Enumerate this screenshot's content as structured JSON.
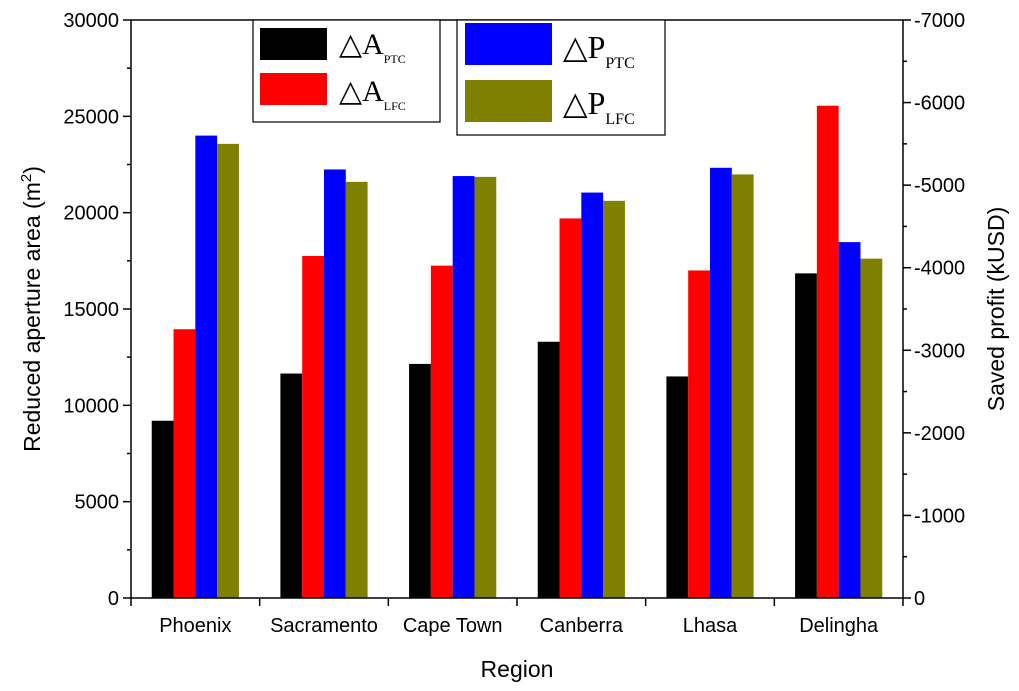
{
  "chart_data": {
    "type": "bar",
    "categories": [
      "Phoenix",
      "Sacramento",
      "Cape Town",
      "Canberra",
      "Lhasa",
      "Delingha"
    ],
    "xlabel": "Region",
    "ylabel_left": {
      "text": "Reduced aperture area (m",
      "sup": "2",
      "close": ")"
    },
    "ylabel_right": "Saved profit (kUSD)",
    "ylim_left": [
      0,
      30000
    ],
    "yticks_left": [
      0,
      5000,
      10000,
      15000,
      20000,
      25000,
      30000
    ],
    "ylim_right": [
      0,
      -7000
    ],
    "yticks_right": [
      0,
      -1000,
      -2000,
      -3000,
      -4000,
      -5000,
      -6000,
      -7000
    ],
    "series": [
      {
        "name": "△A_PTC",
        "symbol": "△A",
        "sub": "PTC",
        "axis": "left",
        "color": "#000000",
        "values": [
          9200,
          11650,
          12150,
          13300,
          11500,
          16850
        ]
      },
      {
        "name": "△A_LFC",
        "symbol": "△A",
        "sub": "LFC",
        "axis": "left",
        "color": "#ff0000",
        "values": [
          13950,
          17750,
          17250,
          19700,
          17000,
          25550
        ]
      },
      {
        "name": "△P_PTC",
        "symbol": "△P",
        "sub": "PTC",
        "axis": "right",
        "color": "#0000ff",
        "values": [
          -5600,
          -5190,
          -5110,
          -4910,
          -5210,
          -4310
        ]
      },
      {
        "name": "△P_LFC",
        "symbol": "△P",
        "sub": "LFC",
        "axis": "right",
        "color": "#808000",
        "values": [
          -5500,
          -5040,
          -5100,
          -4810,
          -5130,
          -4110
        ]
      }
    ],
    "legend": [
      "top-left",
      "top-center"
    ],
    "grid": false
  }
}
